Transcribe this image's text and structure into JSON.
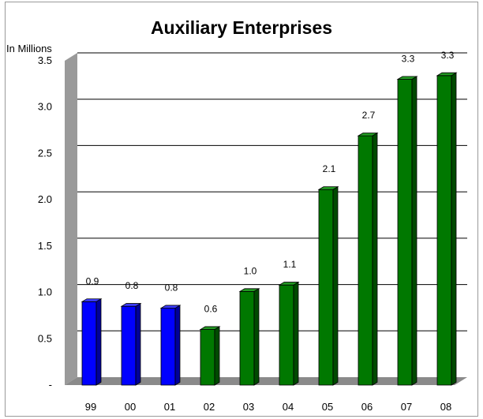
{
  "chart_data": {
    "type": "bar",
    "title": "Auxiliary Enterprises",
    "ylabel": "In Millions",
    "xlabel": "",
    "categories": [
      "99",
      "00",
      "01",
      "02",
      "03",
      "04",
      "05",
      "06",
      "07",
      "08"
    ],
    "values": [
      0.9,
      0.85,
      0.83,
      0.6,
      1.01,
      1.08,
      2.11,
      2.69,
      3.3,
      3.34
    ],
    "data_labels": [
      "0.9",
      "0.8",
      "0.8",
      "0.6",
      "1.0",
      "1.1",
      "2.1",
      "2.7",
      "3.3",
      "3.3"
    ],
    "ylim": [
      0,
      3.5
    ],
    "yticks": [
      0,
      0.5,
      1.0,
      1.5,
      2.0,
      2.5,
      3.0,
      3.5
    ],
    "ytick_labels": [
      "-",
      "0.5",
      "1.0",
      "1.5",
      "2.0",
      "2.5",
      "3.0",
      "3.5"
    ],
    "grid": true,
    "colors": {
      "bar_blue": "#0000ff",
      "bar_green": "#007800",
      "wall": "#9a9a9a",
      "floor": "#8a8a8a",
      "gridline": "#000000"
    },
    "bar_color_groups": [
      "blue",
      "blue",
      "blue",
      "green",
      "green",
      "green",
      "green",
      "green",
      "green",
      "green"
    ]
  }
}
